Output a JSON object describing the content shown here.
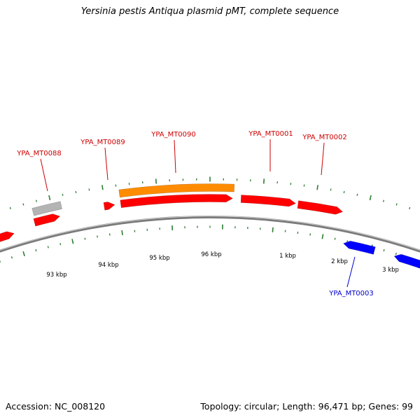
{
  "title": "Yersinia pestis Antiqua plasmid pMT, complete sequence",
  "footer": {
    "accession": "Accession: NC_008120",
    "summary": "Topology: circular; Length: 96,471 bp; Genes: 99"
  },
  "colors": {
    "forward_gene": "#ff0000",
    "reverse_gene": "#0000ff",
    "highlight_gene": "#ff8c00",
    "other_feature": "#b4b4b4",
    "backbone": "#7a7a7a",
    "ticks": "#2e7d32",
    "forward_label": "#cc0000",
    "reverse_label": "#0000cc"
  },
  "gene_labels": [
    {
      "id": "YPA_MT0088",
      "strand": "forward"
    },
    {
      "id": "YPA_MT0089",
      "strand": "forward"
    },
    {
      "id": "YPA_MT0090",
      "strand": "forward"
    },
    {
      "id": "YPA_MT0001",
      "strand": "forward"
    },
    {
      "id": "YPA_MT0002",
      "strand": "forward"
    },
    {
      "id": "YPA_MT0003",
      "strand": "reverse"
    }
  ],
  "kbp_labels": [
    "93 kbp",
    "94 kbp",
    "95 kbp",
    "96 kbp",
    "1 kbp",
    "2 kbp",
    "3 kbp"
  ]
}
